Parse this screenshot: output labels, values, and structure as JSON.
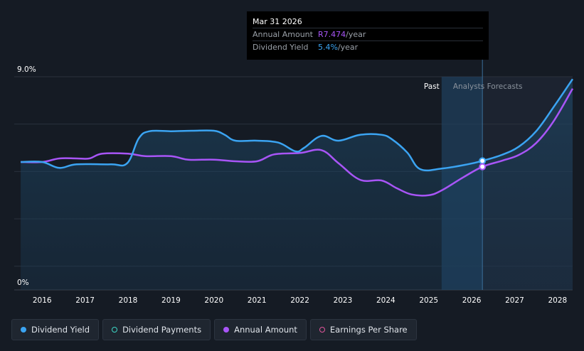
{
  "tooltip": {
    "date": "Mar 31 2026",
    "rows": [
      {
        "label": "Annual Amount",
        "value": "R7.474",
        "unit": "/year"
      },
      {
        "label": "Dividend Yield",
        "value": "5.4%",
        "unit": "/year"
      }
    ]
  },
  "regions": {
    "past": "Past",
    "forecast": "Analysts Forecasts"
  },
  "legend": [
    {
      "label": "Dividend Yield",
      "color": "#3ba4f2",
      "filled": true
    },
    {
      "label": "Dividend Payments",
      "color": "#3dd6c6",
      "filled": false
    },
    {
      "label": "Annual Amount",
      "color": "#a855f7",
      "filled": true
    },
    {
      "label": "Earnings Per Share",
      "color": "#e0569b",
      "filled": false
    }
  ],
  "colors": {
    "yield": "#3ba4f2",
    "amount": "#a855f7",
    "background": "#151b24"
  },
  "chart_data": {
    "type": "line",
    "xlabel": "",
    "ylabel": "",
    "ylim": [
      0,
      9.0
    ],
    "y_tick_labels": [
      "0%",
      "9.0%"
    ],
    "x_tick_labels": [
      "2016",
      "2017",
      "2018",
      "2019",
      "2020",
      "2021",
      "2022",
      "2023",
      "2024",
      "2025",
      "2026",
      "2027",
      "2028"
    ],
    "xlim": [
      2015.35,
      2028.35
    ],
    "grid": true,
    "legend": "bottom",
    "past_forecast_boundary": 2025.3,
    "highlight_x": 2026.25,
    "series": [
      {
        "name": "Dividend Yield",
        "points": [
          [
            2015.5,
            5.4
          ],
          [
            2016.0,
            5.4
          ],
          [
            2016.4,
            5.15
          ],
          [
            2016.8,
            5.3
          ],
          [
            2017.6,
            5.3
          ],
          [
            2017.98,
            5.35
          ],
          [
            2018.25,
            6.4
          ],
          [
            2018.5,
            6.7
          ],
          [
            2019.0,
            6.7
          ],
          [
            2019.5,
            6.72
          ],
          [
            2020.0,
            6.72
          ],
          [
            2020.25,
            6.55
          ],
          [
            2020.5,
            6.3
          ],
          [
            2021.0,
            6.3
          ],
          [
            2021.5,
            6.22
          ],
          [
            2021.9,
            5.85
          ],
          [
            2022.1,
            6.0
          ],
          [
            2022.5,
            6.5
          ],
          [
            2022.9,
            6.3
          ],
          [
            2023.4,
            6.55
          ],
          [
            2023.9,
            6.55
          ],
          [
            2024.15,
            6.35
          ],
          [
            2024.5,
            5.8
          ],
          [
            2024.8,
            5.1
          ],
          [
            2025.3,
            5.12
          ],
          [
            2025.9,
            5.3
          ],
          [
            2026.25,
            5.45
          ],
          [
            2026.7,
            5.7
          ],
          [
            2027.1,
            6.05
          ],
          [
            2027.5,
            6.7
          ],
          [
            2027.9,
            7.7
          ],
          [
            2028.35,
            8.9
          ]
        ]
      },
      {
        "name": "Annual Amount",
        "points": [
          [
            2015.5,
            5.4
          ],
          [
            2016.0,
            5.4
          ],
          [
            2016.4,
            5.55
          ],
          [
            2016.8,
            5.55
          ],
          [
            2017.1,
            5.55
          ],
          [
            2017.4,
            5.75
          ],
          [
            2018.0,
            5.75
          ],
          [
            2018.4,
            5.65
          ],
          [
            2019.0,
            5.65
          ],
          [
            2019.4,
            5.5
          ],
          [
            2020.0,
            5.5
          ],
          [
            2020.5,
            5.43
          ],
          [
            2021.0,
            5.43
          ],
          [
            2021.4,
            5.72
          ],
          [
            2022.0,
            5.78
          ],
          [
            2022.5,
            5.9
          ],
          [
            2022.9,
            5.35
          ],
          [
            2023.4,
            4.65
          ],
          [
            2023.9,
            4.62
          ],
          [
            2024.25,
            4.3
          ],
          [
            2024.6,
            4.03
          ],
          [
            2025.0,
            4.0
          ],
          [
            2025.3,
            4.2
          ],
          [
            2025.8,
            4.75
          ],
          [
            2026.25,
            5.2
          ],
          [
            2026.7,
            5.45
          ],
          [
            2027.1,
            5.7
          ],
          [
            2027.5,
            6.2
          ],
          [
            2027.9,
            7.1
          ],
          [
            2028.35,
            8.5
          ]
        ]
      }
    ]
  }
}
